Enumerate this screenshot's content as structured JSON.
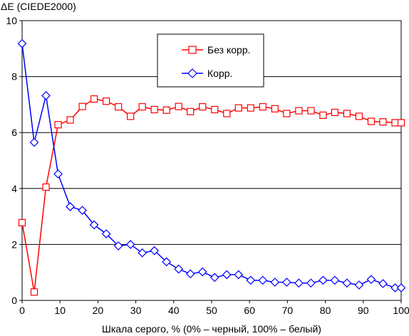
{
  "chart_data": {
    "type": "line",
    "ylabel": "ΔE (CIEDE2000)",
    "xlabel": "Шкала серого, % (0% – черный, 100% – белый)",
    "xlim": [
      0,
      100
    ],
    "ylim": [
      0,
      10
    ],
    "x_ticks": [
      0,
      10,
      20,
      30,
      40,
      50,
      60,
      70,
      80,
      90,
      100
    ],
    "y_ticks": [
      0,
      2,
      4,
      6,
      8,
      10
    ],
    "grid": "horizontal",
    "legend": "top-center",
    "x": [
      0,
      3.2,
      6.3,
      9.5,
      12.7,
      15.9,
      19.0,
      22.2,
      25.4,
      28.6,
      31.7,
      34.9,
      38.1,
      41.3,
      44.4,
      47.6,
      50.8,
      54.0,
      57.1,
      60.3,
      63.5,
      66.7,
      69.8,
      73.0,
      76.2,
      79.4,
      82.5,
      85.7,
      88.9,
      92.1,
      95.2,
      98.4,
      100
    ],
    "series": [
      {
        "name": "Без корр.",
        "color": "#ff0000",
        "marker": "square",
        "values": [
          2.78,
          0.3,
          4.05,
          6.28,
          6.45,
          6.93,
          7.2,
          7.12,
          6.92,
          6.58,
          6.92,
          6.82,
          6.8,
          6.93,
          6.75,
          6.92,
          6.82,
          6.68,
          6.88,
          6.88,
          6.92,
          6.85,
          6.68,
          6.78,
          6.78,
          6.62,
          6.72,
          6.68,
          6.58,
          6.4,
          6.38,
          6.35,
          6.35
        ]
      },
      {
        "name": "Корр.",
        "color": "#0000ff",
        "marker": "diamond",
        "values": [
          9.18,
          5.65,
          7.32,
          4.52,
          3.35,
          3.22,
          2.7,
          2.38,
          1.95,
          2.0,
          1.7,
          1.78,
          1.38,
          1.12,
          0.95,
          1.02,
          0.82,
          0.92,
          0.92,
          0.72,
          0.72,
          0.65,
          0.65,
          0.62,
          0.62,
          0.72,
          0.72,
          0.62,
          0.55,
          0.75,
          0.6,
          0.45,
          0.45
        ]
      }
    ]
  }
}
